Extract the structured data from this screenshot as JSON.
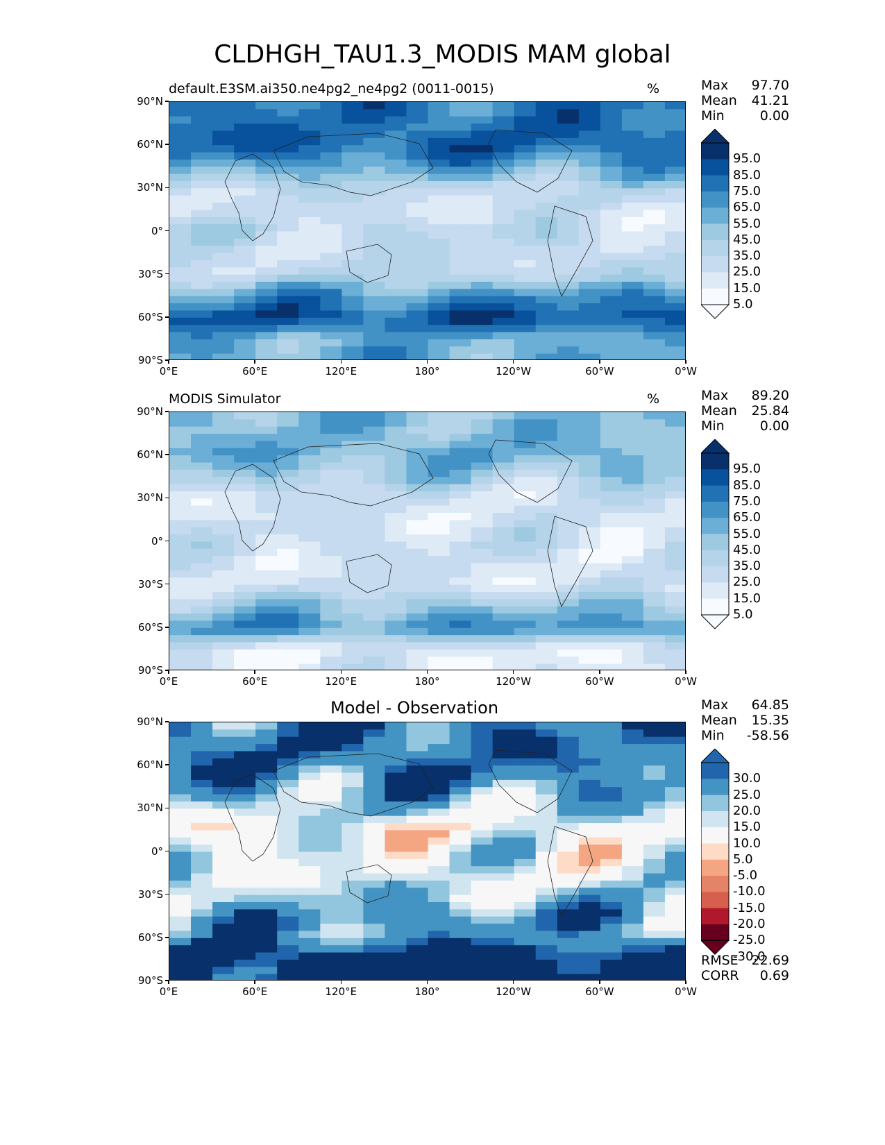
{
  "title": "CLDHGH_TAU1.3_MODIS MAM global",
  "x_ticks": [
    "0°E",
    "60°E",
    "120°E",
    "180°",
    "120°W",
    "60°W",
    "0°W"
  ],
  "y_ticks": [
    "90°N",
    "60°N",
    "30°N",
    "0°",
    "30°S",
    "60°S",
    "90°S"
  ],
  "colors": {
    "blues": [
      "#f7fbff",
      "#deebf7",
      "#c6dbef",
      "#b5d4e9",
      "#9ecae1",
      "#6baed6",
      "#4292c6",
      "#2171b5",
      "#08519c",
      "#08306b"
    ],
    "diverging": [
      "#67001f",
      "#b2182b",
      "#d6604d",
      "#e58368",
      "#f4a582",
      "#fddbc7",
      "#f7f7f7",
      "#d1e5f0",
      "#92c5de",
      "#4393c3",
      "#2166ac",
      "#08306b"
    ]
  },
  "panels": [
    {
      "id": "test",
      "label": "default.E3SM.ai350.ne4pg2_ne4pg2 (0011-0015)",
      "unit": "%",
      "stats": {
        "max_label": "Max",
        "max": "97.70",
        "mean_label": "Mean",
        "mean": "41.21",
        "min_label": "Min",
        "min": "0.00"
      },
      "colorbar_labels": [
        "95.0",
        "85.0",
        "75.0",
        "65.0",
        "55.0",
        "45.0",
        "35.0",
        "25.0",
        "15.0",
        "5.0"
      ]
    },
    {
      "id": "ref",
      "label": "MODIS Simulator",
      "unit": "%",
      "stats": {
        "max_label": "Max",
        "max": "89.20",
        "mean_label": "Mean",
        "mean": "25.84",
        "min_label": "Min",
        "min": "0.00"
      },
      "colorbar_labels": [
        "95.0",
        "85.0",
        "75.0",
        "65.0",
        "55.0",
        "45.0",
        "35.0",
        "25.0",
        "15.0",
        "5.0"
      ]
    },
    {
      "id": "diff",
      "label": "Model - Observation",
      "unit": "",
      "stats": {
        "max_label": "Max",
        "max": "64.85",
        "mean_label": "Mean",
        "mean": "15.35",
        "min_label": "Min",
        "min": "-58.56"
      },
      "colorbar_labels": [
        "30.0",
        "25.0",
        "20.0",
        "15.0",
        "10.0",
        "5.0",
        "-5.0",
        "-10.0",
        "-15.0",
        "-20.0",
        "-25.0",
        "-30.0"
      ],
      "rmse_label": "RMSE",
      "rmse": "22.69",
      "corr_label": "CORR",
      "corr": "0.69"
    }
  ],
  "chart_data": [
    {
      "type": "heatmap",
      "title": "default.E3SM.ai350.ne4pg2_ne4pg2 (0011-0015)",
      "units": "%",
      "xlim": [
        0,
        360
      ],
      "ylim": [
        -90,
        90
      ],
      "levels": [
        0,
        5,
        15,
        25,
        35,
        45,
        55,
        65,
        75,
        85,
        95,
        100
      ],
      "zonal_profile": {
        "lat": [
          75,
          60,
          45,
          30,
          15,
          0,
          -15,
          -30,
          -45,
          -60,
          -75
        ],
        "values": [
          70,
          75,
          55,
          25,
          15,
          25,
          20,
          25,
          60,
          80,
          50
        ]
      },
      "max": 97.7,
      "mean": 41.21,
      "min": 0.0
    },
    {
      "type": "heatmap",
      "title": "MODIS Simulator",
      "units": "%",
      "xlim": [
        0,
        360
      ],
      "ylim": [
        -90,
        90
      ],
      "levels": [
        0,
        5,
        15,
        25,
        35,
        45,
        55,
        65,
        75,
        85,
        95,
        100
      ],
      "zonal_profile": {
        "lat": [
          75,
          60,
          45,
          30,
          15,
          0,
          -15,
          -30,
          -45,
          -60,
          -75
        ],
        "values": [
          45,
          50,
          35,
          15,
          15,
          20,
          15,
          15,
          40,
          60,
          10
        ]
      },
      "max": 89.2,
      "mean": 25.84,
      "min": 0.0
    },
    {
      "type": "heatmap",
      "title": "Model - Observation",
      "units": "%",
      "xlim": [
        0,
        360
      ],
      "ylim": [
        -90,
        90
      ],
      "levels": [
        -30,
        -25,
        -20,
        -15,
        -10,
        -5,
        5,
        10,
        15,
        20,
        25,
        30
      ],
      "zonal_profile": {
        "lat": [
          75,
          60,
          45,
          30,
          15,
          0,
          -15,
          -30,
          -45,
          -60,
          -75
        ],
        "values": [
          25,
          25,
          20,
          10,
          0,
          5,
          5,
          10,
          20,
          20,
          40
        ]
      },
      "max": 64.85,
      "mean": 15.35,
      "min": -58.56,
      "rmse": 22.69,
      "corr": 0.69
    }
  ]
}
